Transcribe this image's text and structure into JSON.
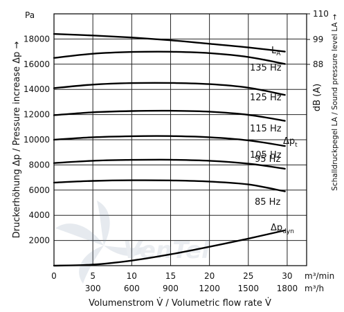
{
  "chart_data": {
    "type": "line",
    "x_primary": {
      "label": "Volumenstrom V̇ / Volumetric flow rate V̇",
      "unit": "m³/min",
      "ticks": [
        0,
        5,
        10,
        15,
        20,
        25,
        30
      ],
      "range": [
        0,
        32.5
      ]
    },
    "x_secondary": {
      "unit": "m³/h",
      "ticks": [
        300,
        600,
        900,
        1200,
        1500,
        1800
      ]
    },
    "y_left": {
      "label": "Druckerhöhung Δp / Pressure increase Δp →",
      "unit": "Pa",
      "ticks": [
        2000,
        4000,
        6000,
        8000,
        10000,
        12000,
        14000,
        16000,
        18000
      ],
      "range": [
        0,
        20000
      ]
    },
    "y_right": {
      "label": "Schalldruckpegel LA / Sound pressure level LA →",
      "unit": "dB (A)",
      "ticks": [
        88,
        99,
        110
      ]
    },
    "grid": true,
    "series": [
      {
        "name": "LA",
        "x": [
          0,
          5,
          10,
          15,
          20,
          25,
          29.7
        ],
        "y": [
          18400,
          18280,
          18120,
          17900,
          17620,
          17330,
          17000
        ]
      },
      {
        "name": "135 Hz",
        "x": [
          0,
          5,
          10,
          15,
          20,
          25,
          29.7
        ],
        "y": [
          16500,
          16830,
          16970,
          16990,
          16880,
          16570,
          16020
        ]
      },
      {
        "name": "125 Hz",
        "x": [
          0,
          5,
          10,
          15,
          20,
          25,
          29.7
        ],
        "y": [
          14100,
          14380,
          14500,
          14510,
          14420,
          14130,
          13560
        ]
      },
      {
        "name": "115 Hz",
        "x": [
          0,
          5,
          10,
          15,
          20,
          25,
          29.7
        ],
        "y": [
          11950,
          12180,
          12280,
          12300,
          12230,
          11980,
          11500
        ]
      },
      {
        "name": "Δpt",
        "x": [
          0,
          5,
          10,
          15,
          20,
          25,
          29.7
        ],
        "y": [
          10000,
          10200,
          10280,
          10290,
          10200,
          9950,
          9500
        ]
      },
      {
        "name": "95 Hz",
        "x": [
          0,
          5,
          10,
          15,
          20,
          25,
          29.7
        ],
        "y": [
          8150,
          8330,
          8400,
          8410,
          8330,
          8100,
          7700
        ]
      },
      {
        "name": "85 Hz",
        "x": [
          0,
          5,
          10,
          15,
          20,
          25,
          29.7
        ],
        "y": [
          6600,
          6730,
          6780,
          6770,
          6680,
          6450,
          5900
        ]
      },
      {
        "name": "Δpdyn",
        "x": [
          0,
          5,
          10,
          15,
          20,
          25,
          29.7
        ],
        "y": [
          0,
          80,
          400,
          900,
          1500,
          2150,
          2800
        ]
      }
    ],
    "labels": {
      "la_main": "L",
      "la_sub": "A",
      "h135": "135 Hz",
      "h125": "125 Hz",
      "h115": "115 Hz",
      "h105": "105 Hz",
      "h95": "95 Hz",
      "h85": "85 Hz",
      "dpt_main": "Δp",
      "dpt_sub": "t",
      "dpdyn_main": "Δp",
      "dpdyn_sub": "dyn"
    }
  }
}
